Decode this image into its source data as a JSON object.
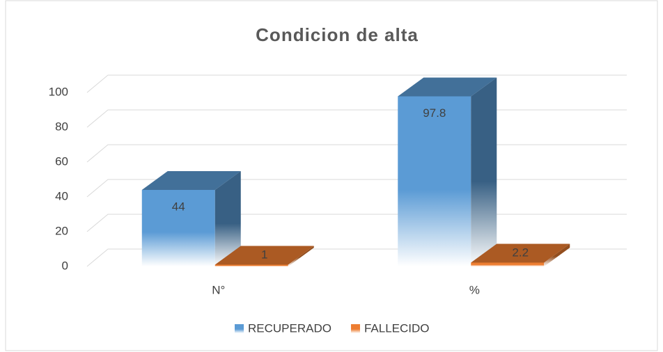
{
  "chart_data": {
    "type": "bar3d",
    "title": "Condicion de alta",
    "categories": [
      "N°",
      "%"
    ],
    "series": [
      {
        "name": "RECUPERADO",
        "color": "#5b9bd5",
        "values": [
          44,
          97.8
        ]
      },
      {
        "name": "FALLECIDO",
        "color": "#ed7d31",
        "values": [
          1,
          2.2
        ]
      }
    ],
    "ylim": [
      0,
      100
    ],
    "yticks": [
      0,
      20,
      40,
      60,
      80,
      100
    ],
    "grid": true,
    "legend": "bottom"
  }
}
